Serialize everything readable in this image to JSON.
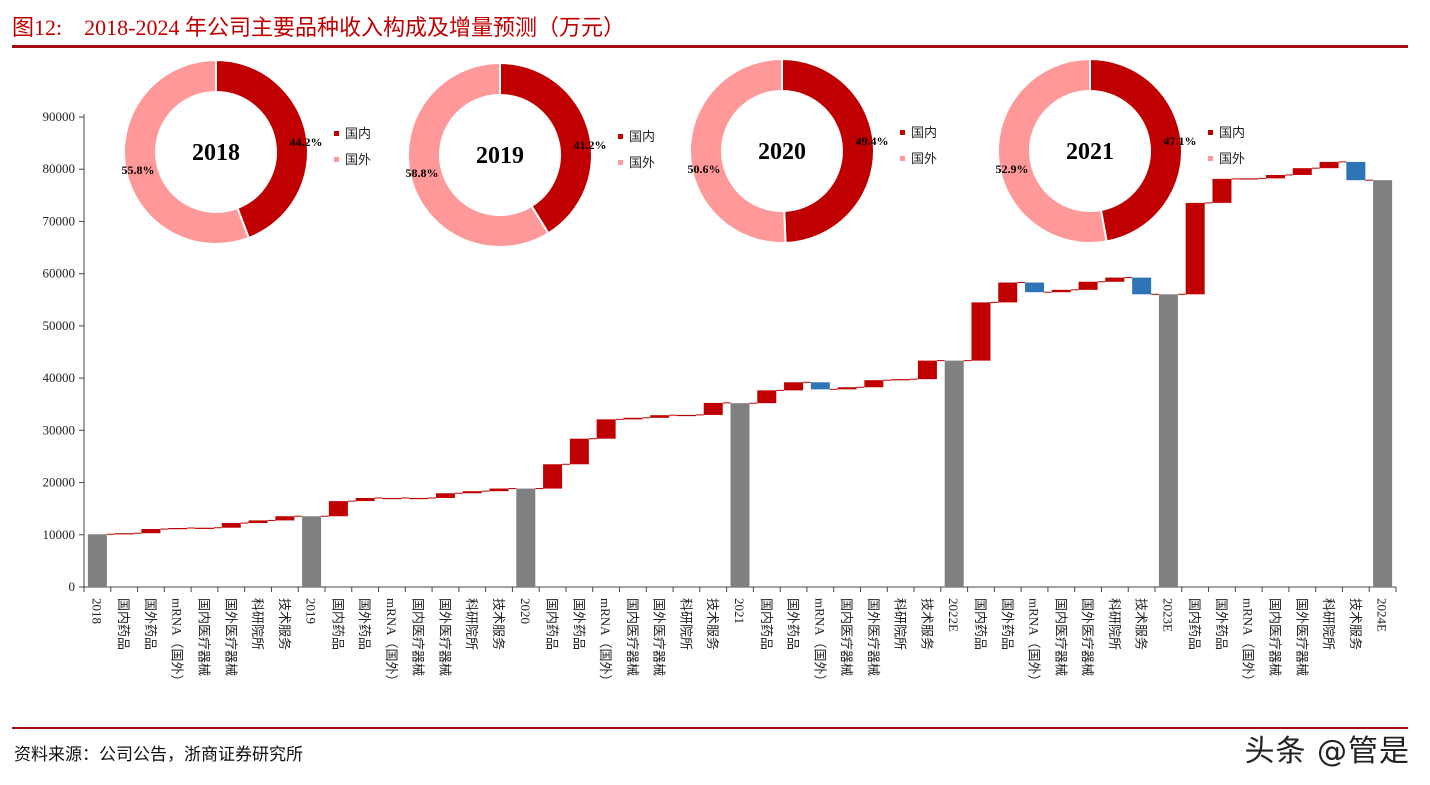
{
  "header": {
    "title": "图12:    2018-2024 年公司主要品种收入构成及增量预测（万元）"
  },
  "footer": {
    "source": "资料来源：公司公告，浙商证券研究所",
    "watermark": "头条 @管是"
  },
  "colors": {
    "increase": "#C00000",
    "decrease": "#2E75B6",
    "total": "#808080",
    "domestic": "#C00000",
    "overseas": "#FF9999",
    "title": "#C00000"
  },
  "chart_data": [
    {
      "type": "waterfall",
      "title": "",
      "ylim": [
        0,
        90000
      ],
      "yticks": [
        0,
        10000,
        20000,
        30000,
        40000,
        50000,
        60000,
        70000,
        80000,
        90000
      ],
      "grid": false,
      "categories": [
        "2018",
        "国内药品",
        "国外药品",
        "mRNA（国外）",
        "国内医疗器械",
        "国外医疗器械",
        "科研院所",
        "技术服务",
        "2019",
        "国内药品",
        "国外药品",
        "mRNA（国外）",
        "国内医疗器械",
        "国外医疗器械",
        "科研院所",
        "技术服务",
        "2020",
        "国内药品",
        "国外药品",
        "mRNA（国外）",
        "国内医疗器械",
        "国外医疗器械",
        "科研院所",
        "技术服务",
        "2021",
        "国内药品",
        "国外药品",
        "mRNA（国外）",
        "国内医疗器械",
        "国外医疗器械",
        "科研院所",
        "技术服务",
        "2022E",
        "国内药品",
        "国外药品",
        "mRNA（国外）",
        "国内医疗器械",
        "国外医疗器械",
        "科研院所",
        "技术服务",
        "2023E",
        "国内药品",
        "国外药品",
        "mRNA（国外）",
        "国内医疗器械",
        "国外医疗器械",
        "科研院所",
        "技术服务",
        "2024E"
      ],
      "kinds": [
        "total",
        "delta",
        "delta",
        "delta",
        "delta",
        "delta",
        "delta",
        "delta",
        "total",
        "delta",
        "delta",
        "delta",
        "delta",
        "delta",
        "delta",
        "delta",
        "total",
        "delta",
        "delta",
        "delta",
        "delta",
        "delta",
        "delta",
        "delta",
        "total",
        "delta",
        "delta",
        "delta",
        "delta",
        "delta",
        "delta",
        "delta",
        "total",
        "delta",
        "delta",
        "delta",
        "delta",
        "delta",
        "delta",
        "delta",
        "total",
        "delta",
        "delta",
        "delta",
        "delta",
        "delta",
        "delta",
        "delta",
        "total"
      ],
      "values": [
        10100,
        200,
        800,
        200,
        50,
        900,
        500,
        800,
        13550,
        2900,
        600,
        0,
        0,
        900,
        400,
        500,
        18850,
        4650,
        4900,
        3700,
        300,
        500,
        50,
        2300,
        35200,
        2450,
        1550,
        -1350,
        400,
        1350,
        200,
        3550,
        43350,
        11150,
        3800,
        -1850,
        450,
        1550,
        800,
        -3200,
        56050,
        17500,
        4600,
        100,
        650,
        1300,
        1200,
        -3500,
        77900
      ]
    },
    {
      "type": "pie",
      "style": "donut",
      "center_label": "2018",
      "legend": [
        "国内",
        "国外"
      ],
      "values": [
        44.2,
        55.8
      ],
      "labels": [
        "44.2%",
        "55.8%"
      ]
    },
    {
      "type": "pie",
      "style": "donut",
      "center_label": "2019",
      "legend": [
        "国内",
        "国外"
      ],
      "values": [
        41.2,
        58.8
      ],
      "labels": [
        "41.2%",
        "58.8%"
      ]
    },
    {
      "type": "pie",
      "style": "donut",
      "center_label": "2020",
      "legend": [
        "国内",
        "国外"
      ],
      "values": [
        49.4,
        50.6
      ],
      "labels": [
        "49.4%",
        "50.6%"
      ]
    },
    {
      "type": "pie",
      "style": "donut",
      "center_label": "2021",
      "legend": [
        "国内",
        "国外"
      ],
      "values": [
        47.1,
        52.9
      ],
      "labels": [
        "47.1%",
        "52.9%"
      ]
    }
  ]
}
